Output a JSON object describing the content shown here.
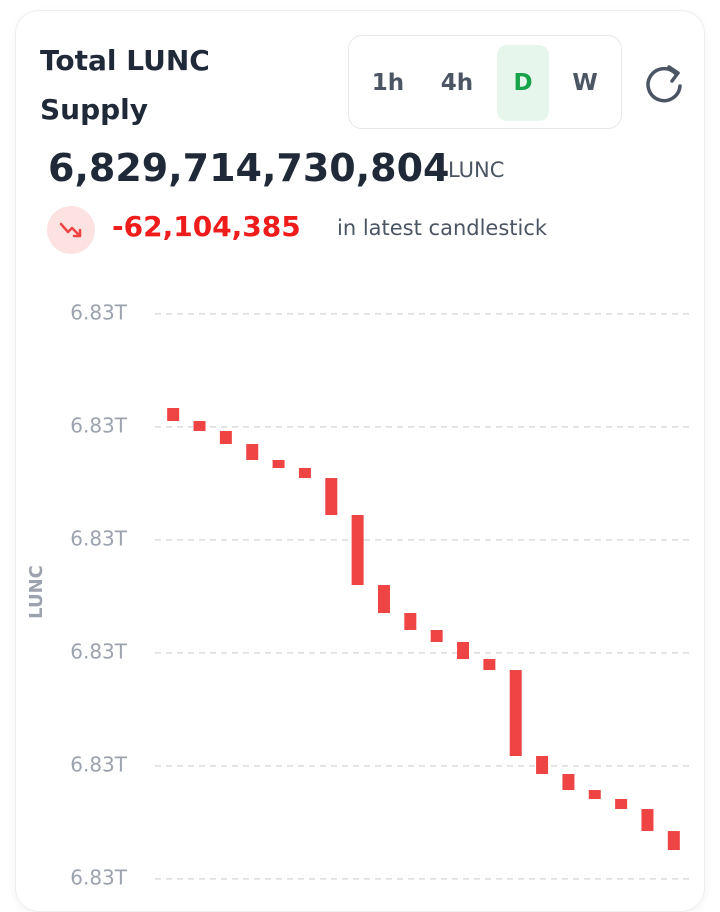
{
  "header": {
    "title": "Total LUNC Supply",
    "timeframes": [
      "1h",
      "4h",
      "D",
      "W"
    ],
    "active_timeframe": 2,
    "supply": "6,829,714,730,804",
    "unit": "LUNC",
    "change": "-62,104,385",
    "change_note": "in latest candlestick"
  },
  "chart_data": {
    "type": "candlestick",
    "ylabel": "LUNC",
    "color": "#ef4444",
    "grid": true,
    "open": [
      6831161800000,
      6831119200000,
      6831086500000,
      6831043900000,
      6830991600000,
      6830965400000,
      6830932600000,
      6830811500000,
      6830582300000,
      6830490600000,
      6830435000000,
      6830395700000,
      6830340000000,
      6830304000000,
      6830022500000,
      6829963500000,
      6829911100000,
      6829881700000,
      6829848900000,
      6829776835189
    ],
    "close": [
      6831119200000,
      6831086500000,
      6831043900000,
      6830991600000,
      6830965400000,
      6830932600000,
      6830811500000,
      6830582300000,
      6830490600000,
      6830435000000,
      6830395700000,
      6830340000000,
      6830304000000,
      6830022500000,
      6829963500000,
      6829911100000,
      6829881700000,
      6829848900000,
      6829776835189,
      6829714730804
    ],
    "ylim": [
      6829593600000,
      6831515400000
    ],
    "yticks": [
      {
        "value": 6829620000000,
        "label": "6.83T"
      },
      {
        "value": 6829990000000,
        "label": "6.83T"
      },
      {
        "value": 6830360000000,
        "label": "6.83T"
      },
      {
        "value": 6830730000000,
        "label": "6.83T"
      },
      {
        "value": 6831100000000,
        "label": "6.83T"
      },
      {
        "value": 6831470000000,
        "label": "6.83T"
      }
    ]
  }
}
